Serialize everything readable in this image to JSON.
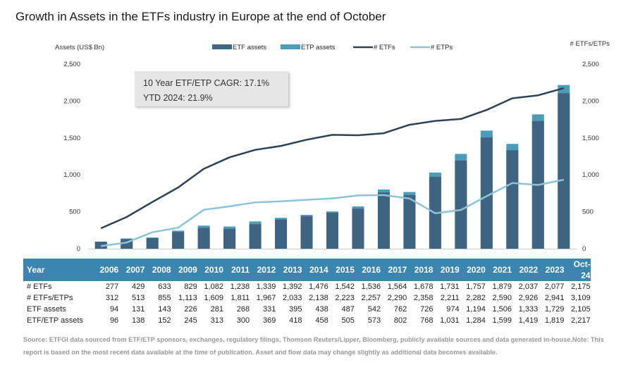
{
  "title": "Growth in Assets in the ETFs industry in Europe at the end of October",
  "annotation": {
    "line1": "10 Year ETF/ETP CAGR: 17.1%",
    "line2": "YTD 2024: 21.9%"
  },
  "source": "Source: ETFGI data sourced from ETF/ETP sponsors, exchanges, regulatory filings, Thomson Reuters/Lipper, Bloomberg, publicly available sources and data generated in-house.Note: This report is based on the most recent data available at the time of publication. Asset and flow data may change slightly as additional data becomes available.",
  "colors": {
    "etf_assets": "#3f6482",
    "etp_assets": "#4b9cba",
    "etfs_line": "#2e4256",
    "etps_line": "#8ec4d6",
    "table_header": "#3b86b0"
  },
  "chart_data": {
    "type": "bar+line",
    "left_axis_label": "Assets (US$ Bn)",
    "right_axis_label": "# ETFs/ETPs",
    "ylim": [
      0,
      2500
    ],
    "yticks": [
      "0",
      "500",
      "1,000",
      "1,500",
      "2,000",
      "2,500"
    ],
    "categories": [
      "2006",
      "2007",
      "2008",
      "2009",
      "2010",
      "2011",
      "2012",
      "2013",
      "2014",
      "2015",
      "2016",
      "2017",
      "2018",
      "2019",
      "2020",
      "2021",
      "2022",
      "2023",
      "Oct-24"
    ],
    "legend": [
      "ETF assets",
      "ETP assets",
      "# ETFs",
      "# ETPs"
    ],
    "bar_series": [
      {
        "name": "ETF assets",
        "values": [
          94,
          131,
          143,
          226,
          281,
          268,
          331,
          395,
          438,
          487,
          542,
          762,
          726,
          974,
          1194,
          1506,
          1333,
          1729,
          2105
        ]
      },
      {
        "name": "ETF/ETP assets",
        "values": [
          96,
          138,
          152,
          245,
          313,
          300,
          369,
          418,
          458,
          505,
          573,
          802,
          768,
          1031,
          1284,
          1599,
          1419,
          1819,
          2217
        ]
      }
    ],
    "line_series": [
      {
        "name": "# ETFs",
        "values": [
          277,
          429,
          633,
          829,
          1082,
          1238,
          1339,
          1392,
          1476,
          1542,
          1536,
          1564,
          1678,
          1731,
          1757,
          1879,
          2037,
          2077,
          2175
        ]
      },
      {
        "name": "# ETPs",
        "values": [
          35,
          84,
          222,
          284,
          527,
          573,
          628,
          641,
          662,
          681,
          721,
          726,
          680,
          480,
          525,
          711,
          889,
          864,
          934
        ]
      }
    ]
  },
  "table": {
    "header": "Year",
    "years": [
      "2006",
      "2007",
      "2008",
      "2009",
      "2010",
      "2011",
      "2012",
      "2013",
      "2014",
      "2015",
      "2016",
      "2017",
      "2018",
      "2019",
      "2020",
      "2021",
      "2022",
      "2023",
      "Oct-24"
    ],
    "rows": [
      {
        "label": "# ETFs",
        "values": [
          "277",
          "429",
          "633",
          "829",
          "1,082",
          "1,238",
          "1,339",
          "1,392",
          "1,476",
          "1,542",
          "1,536",
          "1,564",
          "1,678",
          "1,731",
          "1,757",
          "1,879",
          "2,037",
          "2,077",
          "2,175"
        ]
      },
      {
        "label": "# ETFs/ETPs",
        "values": [
          "312",
          "513",
          "855",
          "1,113",
          "1,609",
          "1,811",
          "1,967",
          "2,033",
          "2,138",
          "2,223",
          "2,257",
          "2,290",
          "2,358",
          "2,211",
          "2,282",
          "2,590",
          "2,926",
          "2,941",
          "3,109"
        ]
      },
      {
        "label": "ETF assets",
        "values": [
          "94",
          "131",
          "143",
          "226",
          "281",
          "268",
          "331",
          "395",
          "438",
          "487",
          "542",
          "762",
          "726",
          "974",
          "1,194",
          "1,506",
          "1,333",
          "1,729",
          "2,105"
        ]
      },
      {
        "label": "ETF/ETP assets",
        "values": [
          "96",
          "138",
          "152",
          "245",
          "313",
          "300",
          "369",
          "418",
          "458",
          "505",
          "573",
          "802",
          "768",
          "1,031",
          "1,284",
          "1,599",
          "1,419",
          "1,819",
          "2,217"
        ]
      }
    ]
  }
}
